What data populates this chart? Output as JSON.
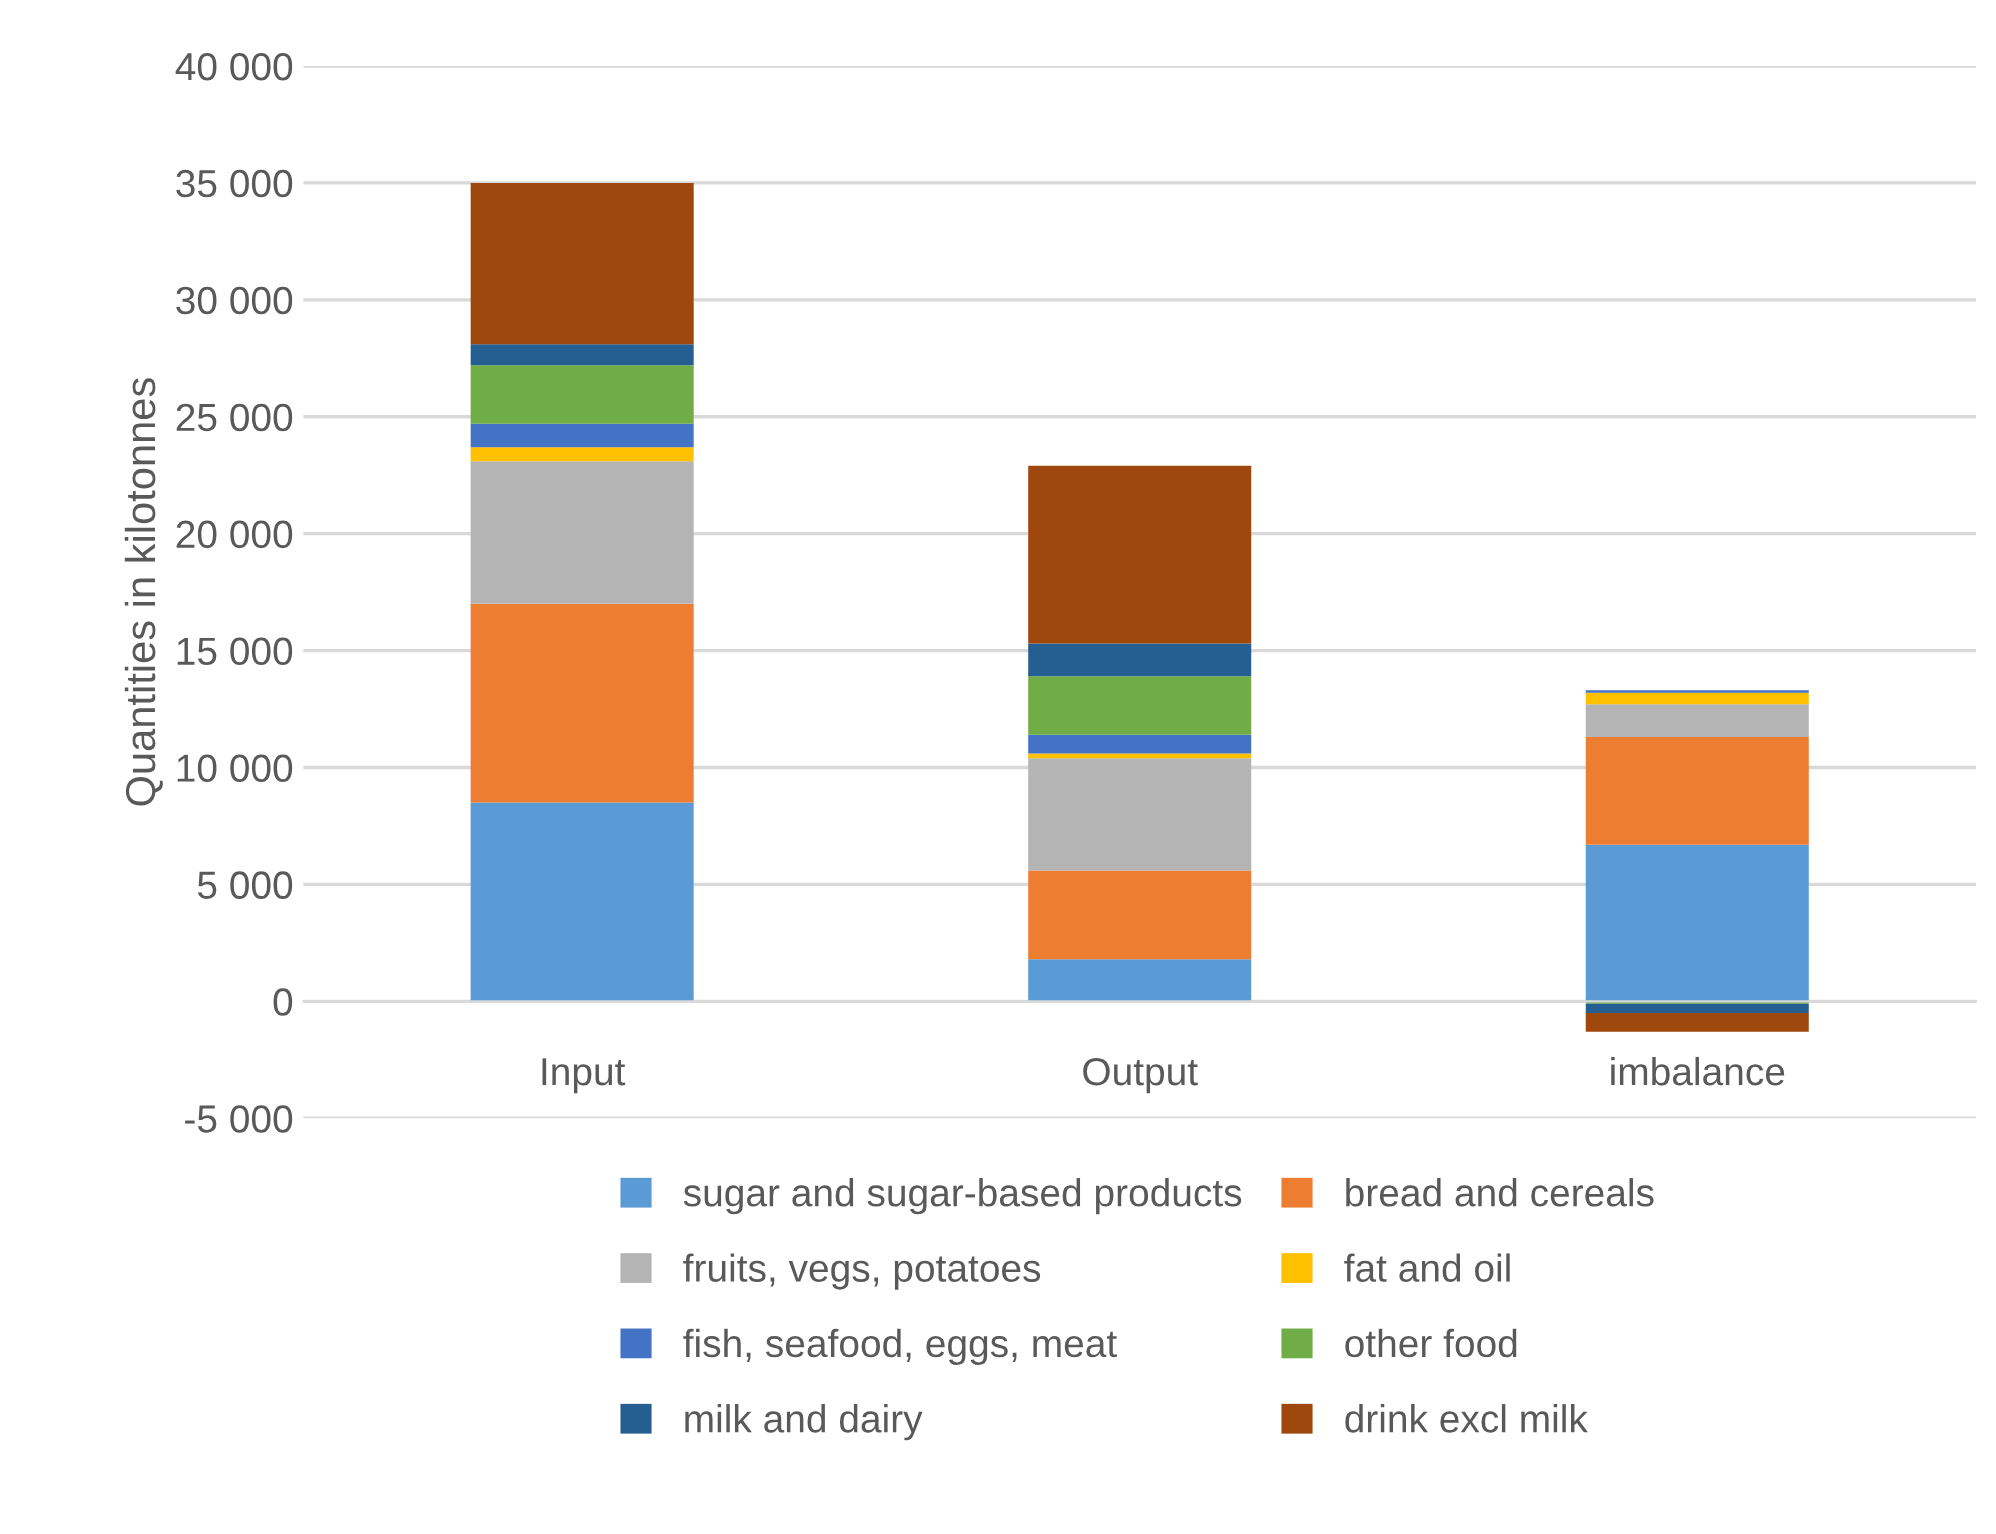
{
  "chart_data": {
    "type": "bar",
    "stacked": true,
    "ylabel": "Quantities in kilotonnes",
    "categories": [
      "Input",
      "Output",
      "imbalance"
    ],
    "series": [
      {
        "name": "sugar and sugar-based products",
        "color": "#5b9bd5",
        "values": [
          8500,
          1800,
          6700
        ]
      },
      {
        "name": "bread and cereals",
        "color": "#ed7d31",
        "values": [
          8500,
          3800,
          4600
        ]
      },
      {
        "name": "fruits, vegs, potatoes",
        "color": "#b4b4b4",
        "values": [
          6100,
          4800,
          1400
        ]
      },
      {
        "name": "fat and oil",
        "color": "#ffc000",
        "values": [
          600,
          200,
          500
        ]
      },
      {
        "name": "fish, seafood, eggs, meat",
        "color": "#4472c4",
        "values": [
          1000,
          800,
          100
        ]
      },
      {
        "name": "other food",
        "color": "#70ad47",
        "values": [
          2500,
          2500,
          -100
        ]
      },
      {
        "name": "milk and dairy",
        "color": "#255e91",
        "values": [
          900,
          1400,
          -400
        ]
      },
      {
        "name": "drink excl milk",
        "color": "#9e480e",
        "values": [
          6900,
          7600,
          -800
        ]
      }
    ],
    "ylim": [
      -5000,
      40000
    ],
    "yticks": [
      {
        "value": -5000,
        "label": "-5 000"
      },
      0,
      {
        "value": 5000,
        "label": "5 000"
      },
      {
        "value": 10000,
        "label": "10 000"
      },
      {
        "value": 15000,
        "label": "15 000"
      },
      {
        "value": 20000,
        "label": "20 000"
      },
      {
        "value": 25000,
        "label": "25 000"
      },
      {
        "value": 30000,
        "label": "30 000"
      },
      {
        "value": 35000,
        "label": "35 000"
      },
      {
        "value": 40000,
        "label": "40 000"
      }
    ],
    "grid": "y",
    "legend": "bottom"
  }
}
